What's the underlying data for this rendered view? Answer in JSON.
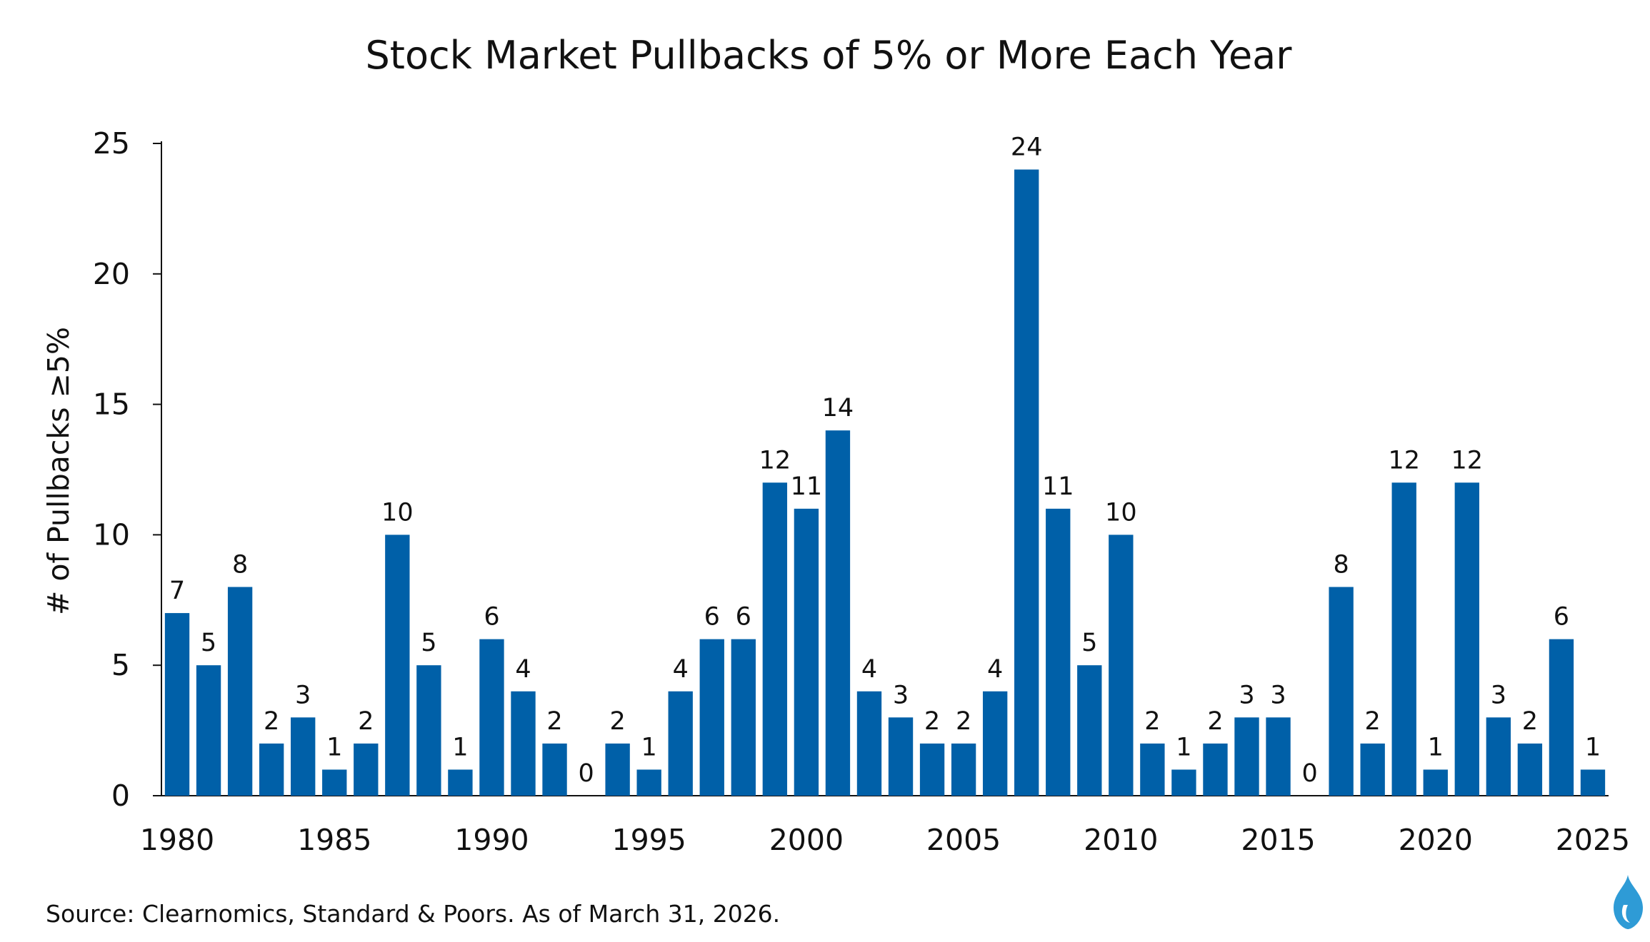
{
  "chart_data": {
    "type": "bar",
    "title": "Stock Market Pullbacks of 5% or More Each Year",
    "ylabel": "# of Pullbacks ≥5%",
    "xlabel": "",
    "ylim": [
      0,
      25
    ],
    "y_ticks": [
      0,
      5,
      10,
      15,
      20,
      25
    ],
    "x_tick_labels": [
      "1980",
      "1985",
      "1990",
      "1995",
      "2000",
      "2005",
      "2010",
      "2015",
      "2020",
      "2025"
    ],
    "categories": [
      "1980",
      "1981",
      "1982",
      "1983",
      "1984",
      "1985",
      "1986",
      "1987",
      "1988",
      "1989",
      "1990",
      "1991",
      "1992",
      "1993",
      "1994",
      "1995",
      "1996",
      "1997",
      "1998",
      "1999",
      "2000",
      "2001",
      "2002",
      "2003",
      "2004",
      "2005",
      "2006",
      "2007",
      "2008",
      "2009",
      "2010",
      "2011",
      "2012",
      "2013",
      "2014",
      "2015",
      "2016",
      "2017",
      "2018",
      "2019",
      "2020",
      "2021",
      "2022",
      "2023",
      "2024",
      "2025"
    ],
    "values": [
      7,
      5,
      8,
      2,
      3,
      1,
      2,
      10,
      5,
      1,
      6,
      4,
      2,
      0,
      2,
      1,
      4,
      6,
      6,
      12,
      11,
      14,
      4,
      3,
      2,
      2,
      4,
      24,
      11,
      5,
      10,
      2,
      1,
      2,
      3,
      3,
      0,
      8,
      2,
      12,
      1,
      12,
      3,
      2,
      6,
      1
    ],
    "bar_color": "#0060A8",
    "grid": false,
    "legend": "none"
  },
  "source": "Source: Clearnomics, Standard & Poors. As of March 31, 2026.",
  "logo": {
    "icon": "flame-icon",
    "color": "#2E9BD6",
    "highlight_color": "#ffffff"
  }
}
